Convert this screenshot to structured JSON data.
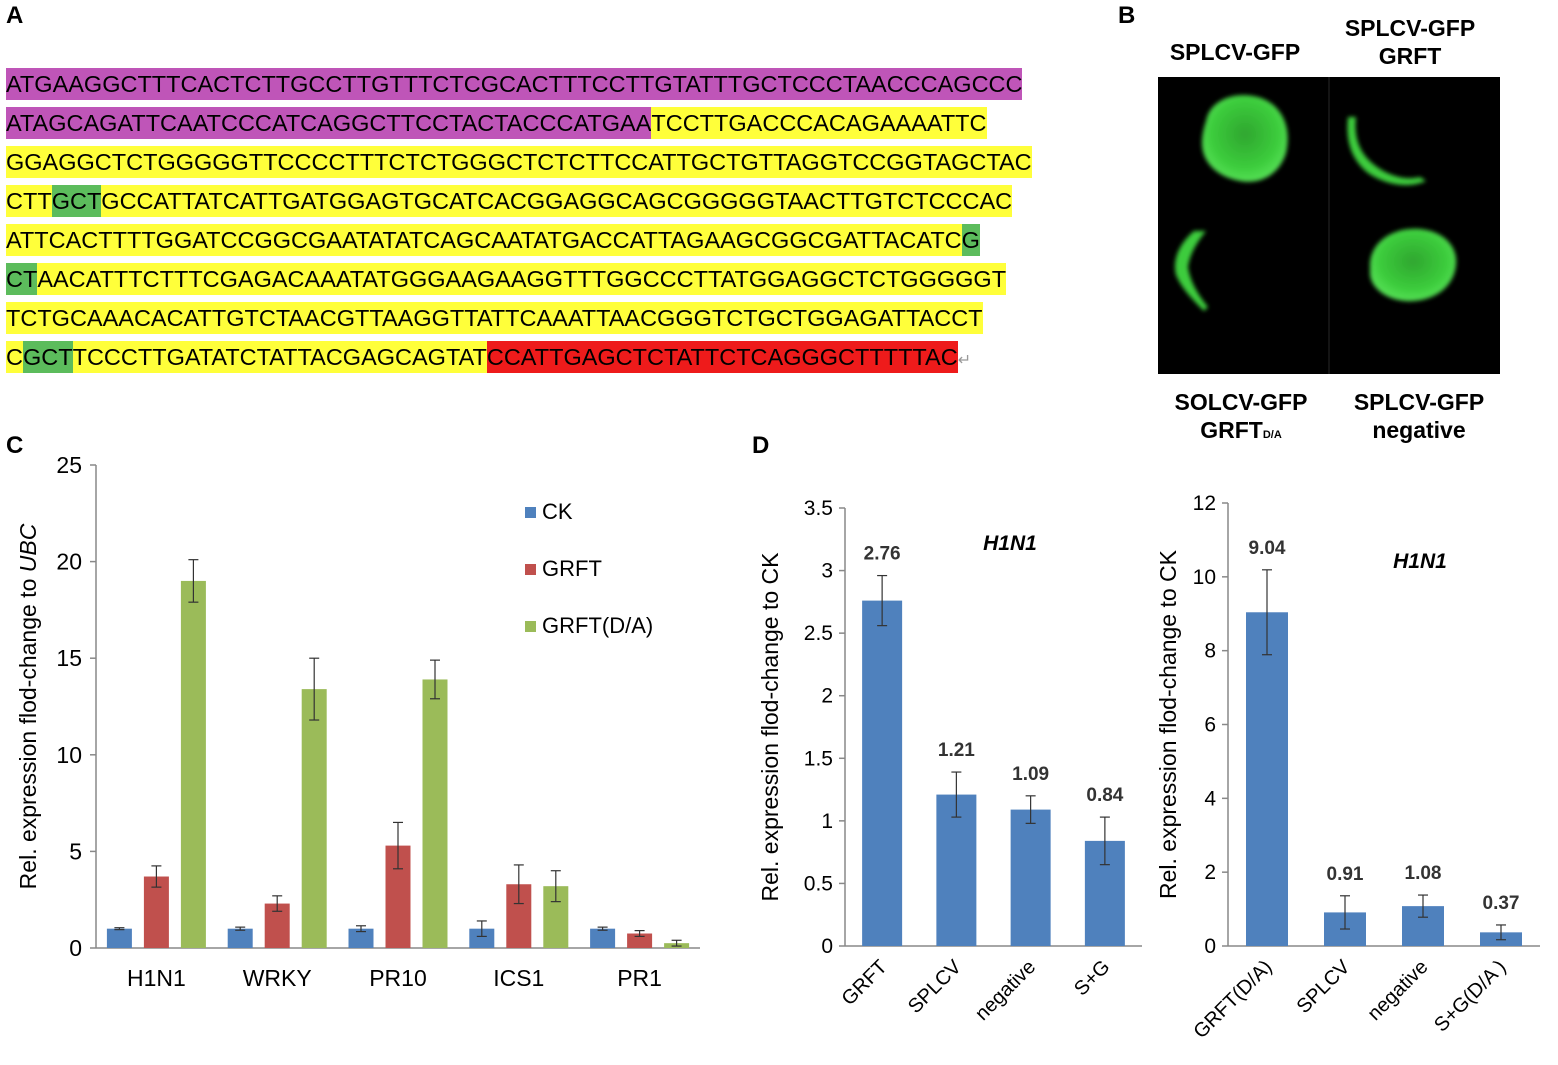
{
  "panels": {
    "a": "A",
    "b": "B",
    "c": "C",
    "d": "D"
  },
  "sequence": {
    "colors": {
      "magenta": "#bf55b8",
      "yellow": "#ffff3a",
      "green": "#5cbc5c",
      "red": "#ee1b1b"
    },
    "return_mark": "↵",
    "lines": [
      [
        {
          "t": "ATGAAGGCTTTCACTCTTGCCTTGTTTCTCGCACTTTCCTTGTATTTGCTCCCTAACCCAGCCC",
          "c": "magenta"
        }
      ],
      [
        {
          "t": "ATAGCAGATTCAATCCCATCAGGCTTCCTACTACCCATGAA",
          "c": "magenta"
        },
        {
          "t": "TCCTTGACCCACAGAAAATTC",
          "c": "yellow"
        }
      ],
      [
        {
          "t": "GGAGGCTCTGGGGGTTCCCCTTTCTCTGGGCTCTCTTCCATTGCTGTTAGGTCCGGTAGCTAC",
          "c": "yellow"
        }
      ],
      [
        {
          "t": "CTT",
          "c": "yellow"
        },
        {
          "t": "GCT",
          "c": "green"
        },
        {
          "t": "GCCATTATCATTGATGGAGTGCATCACGGAGGCAGCGGGGGTAACTTGTCTCCCAC",
          "c": "yellow"
        }
      ],
      [
        {
          "t": "ATTCACTTTTGGATCCGGCGAATATATCAGCAATATGACCATTAGAAGCGGCGATTACATC",
          "c": "yellow"
        },
        {
          "t": "G",
          "c": "green"
        }
      ],
      [
        {
          "t": "CT",
          "c": "green"
        },
        {
          "t": "AACATTTCTTTCGAGACAAATATGGGAAGAAGGTTTGGCCCTTATGGAGGCTCTGGGGGT",
          "c": "yellow"
        }
      ],
      [
        {
          "t": "TCTGCAAACACATTGTCTAACGTTAAGGTTATTCAAATTAACGGGTCTGCTGGAGATTACCT",
          "c": "yellow"
        }
      ],
      [
        {
          "t": "C",
          "c": "yellow"
        },
        {
          "t": "GCT",
          "c": "green"
        },
        {
          "t": "TCCCTTGATATCTATTACGAGCAGTAT",
          "c": "yellow"
        },
        {
          "t": "CCATTGAGCTCTATTCTCAGGGCTTTTTAC",
          "c": "red"
        }
      ]
    ]
  },
  "gfp": {
    "labels": {
      "top_left": "SPLCV-GFP",
      "top_right_line1": "SPLCV-GFP",
      "top_right_line2": "GRFT",
      "bottom_left_line1": "SOLCV-GFP",
      "bottom_left_line2": "GRFT",
      "bottom_left_sub": "D/A",
      "bottom_right_line1": "SPLCV-GFP",
      "bottom_right_line2": "negative"
    },
    "color": "#3ccc3c"
  },
  "chart_data": [
    {
      "type": "bar",
      "categories": [
        "H1N1",
        "WRKY",
        "PR10",
        "ICS1",
        "PR1"
      ],
      "ylabel_prefix": "Rel. expression  flod-change to ",
      "ylabel_italic": "UBC",
      "ylim": [
        0,
        25
      ],
      "yticks": [
        0,
        5,
        10,
        15,
        20,
        25
      ],
      "legend_position": "top-right",
      "series": [
        {
          "name": "CK",
          "color": "#4f81bd",
          "values": [
            1.0,
            1.0,
            1.0,
            1.0,
            1.0
          ],
          "errors": [
            0.05,
            0.08,
            0.15,
            0.4,
            0.08
          ]
        },
        {
          "name": "GRFT",
          "color": "#c0504d",
          "values": [
            3.7,
            2.3,
            5.3,
            3.3,
            0.75
          ],
          "errors": [
            0.55,
            0.4,
            1.2,
            1.0,
            0.15
          ]
        },
        {
          "name": "GRFT(D/A)",
          "color": "#9bbb59",
          "values": [
            19.0,
            13.4,
            13.9,
            3.2,
            0.25
          ],
          "errors": [
            1.1,
            1.6,
            1.0,
            0.8,
            0.15
          ]
        }
      ]
    },
    {
      "type": "bar",
      "categories": [
        "GRFT",
        "SPLCV",
        "negative",
        "S+G"
      ],
      "values": [
        2.76,
        1.21,
        1.09,
        0.84
      ],
      "errors": [
        0.2,
        0.18,
        0.11,
        0.19
      ],
      "data_labels": [
        "2.76",
        "1.21",
        "1.09",
        "0.84"
      ],
      "annotation": "H1N1",
      "ylabel": "Rel. expression  flod-change to CK",
      "ylim": [
        0,
        3.5
      ],
      "yticks": [
        0,
        0.5,
        1,
        1.5,
        2,
        2.5,
        3,
        3.5
      ],
      "ytick_labels": [
        "0",
        "0.5",
        "1",
        "1.5",
        "2",
        "2.5",
        "3",
        "3.5"
      ],
      "color": "#4f81bd"
    },
    {
      "type": "bar",
      "categories": [
        "GRFT(D/A)",
        "SPLCV",
        "negative",
        "S+G(D/A )"
      ],
      "values": [
        9.04,
        0.91,
        1.08,
        0.37
      ],
      "errors": [
        1.15,
        0.45,
        0.3,
        0.2
      ],
      "data_labels": [
        "9.04",
        "0.91",
        "1.08",
        "0.37"
      ],
      "annotation": "H1N1",
      "ylabel": "Rel. expression  flod-change to CK",
      "ylim": [
        0,
        12
      ],
      "yticks": [
        0,
        2,
        4,
        6,
        8,
        10,
        12
      ],
      "ytick_labels": [
        "0",
        "2",
        "4",
        "6",
        "8",
        "10",
        "12"
      ],
      "color": "#4f81bd"
    }
  ]
}
